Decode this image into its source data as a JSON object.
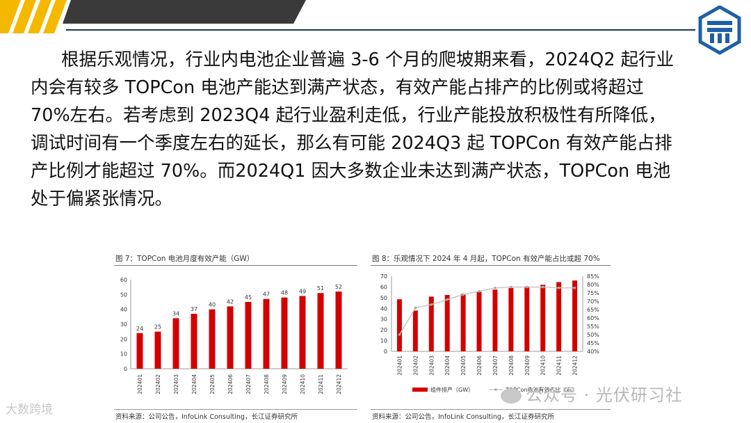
{
  "paragraph": [
    "根据乐观情况，行业内电池企业普遍 3-6 个月的爬坡期来看，2024Q2 起行业",
    "内会有较多 TOPCon 电池产能达到满产状态，有效产能占排产的比例或将超过",
    "70%左右。若考虑到 2023Q4 起行业盈利走低，行业产能投放积极性有所降低，",
    "调试时间有一个季度左右的延长，那么有可能 2024Q3 起 TOPCon 有效产能占排",
    "产比例才能超过 70%。而2024Q1 因大多数企业未达到满产状态，TOPCon 电池",
    "处于偏紧张情况。"
  ],
  "colors": {
    "bar": "#d40000",
    "line": "#c8c8c8",
    "navy": "#17365d",
    "stripe_yellow": "#f5b800"
  },
  "fig7": {
    "title": "图 7：TOPCon 电池月度有效产能（GW）",
    "source": "资料来源：公司公告，InfoLink Consulting，长江证券研究所"
  },
  "fig8": {
    "title": "图 8：乐观情况下 2024 年 4 月起，TOPCon 有效产能占比或超 70%",
    "source": "资料来源：公司公告，InfoLink Consulting，长江证券研究所"
  },
  "watermark": {
    "left": "大数跨境",
    "right": "公众号 · 光伏研习社"
  },
  "chart_data": [
    {
      "type": "bar",
      "title": "图 7：TOPCon 电池月度有效产能（GW）",
      "categories": [
        "202401",
        "202402",
        "202403",
        "202404",
        "202405",
        "202406",
        "202407",
        "202408",
        "202409",
        "202410",
        "202411",
        "202412"
      ],
      "values": [
        24,
        25,
        34,
        37,
        40,
        42,
        45,
        47,
        48,
        49,
        51,
        52
      ],
      "data_labels": true,
      "ylim": [
        0,
        60
      ],
      "yticks": [
        0,
        10,
        20,
        30,
        40,
        50,
        60
      ],
      "grid": false
    },
    {
      "type": "bar",
      "title": "图 8：乐观情况下 2024 年 4 月起，TOPCon 有效产能占比或超 70%",
      "categories": [
        "202401",
        "202402",
        "202403",
        "202404",
        "202405",
        "202406",
        "202407",
        "202408",
        "202409",
        "202410",
        "202411",
        "202412"
      ],
      "series": [
        {
          "name": "组件排产（GW）",
          "type": "bar",
          "axis": "left",
          "values": [
            48.5,
            38,
            51,
            52.5,
            53.5,
            55.5,
            57.5,
            59,
            60.5,
            62,
            64.5,
            66
          ]
        },
        {
          "name": "TOPCon电池有效占比（右）",
          "type": "line",
          "axis": "right",
          "values": [
            50,
            66,
            68,
            71,
            74,
            76,
            78,
            78.5,
            78.5,
            78.5,
            78,
            78
          ]
        }
      ],
      "ylim_left": [
        0,
        70
      ],
      "yticks_left": [
        0,
        10,
        20,
        30,
        40,
        50,
        60,
        70
      ],
      "ylim_right": [
        40,
        85
      ],
      "yticks_right": [
        "40%",
        "45%",
        "50%",
        "55%",
        "60%",
        "65%",
        "70%",
        "75%",
        "80%",
        "85%"
      ],
      "legend_position": "bottom",
      "grid": false
    }
  ]
}
